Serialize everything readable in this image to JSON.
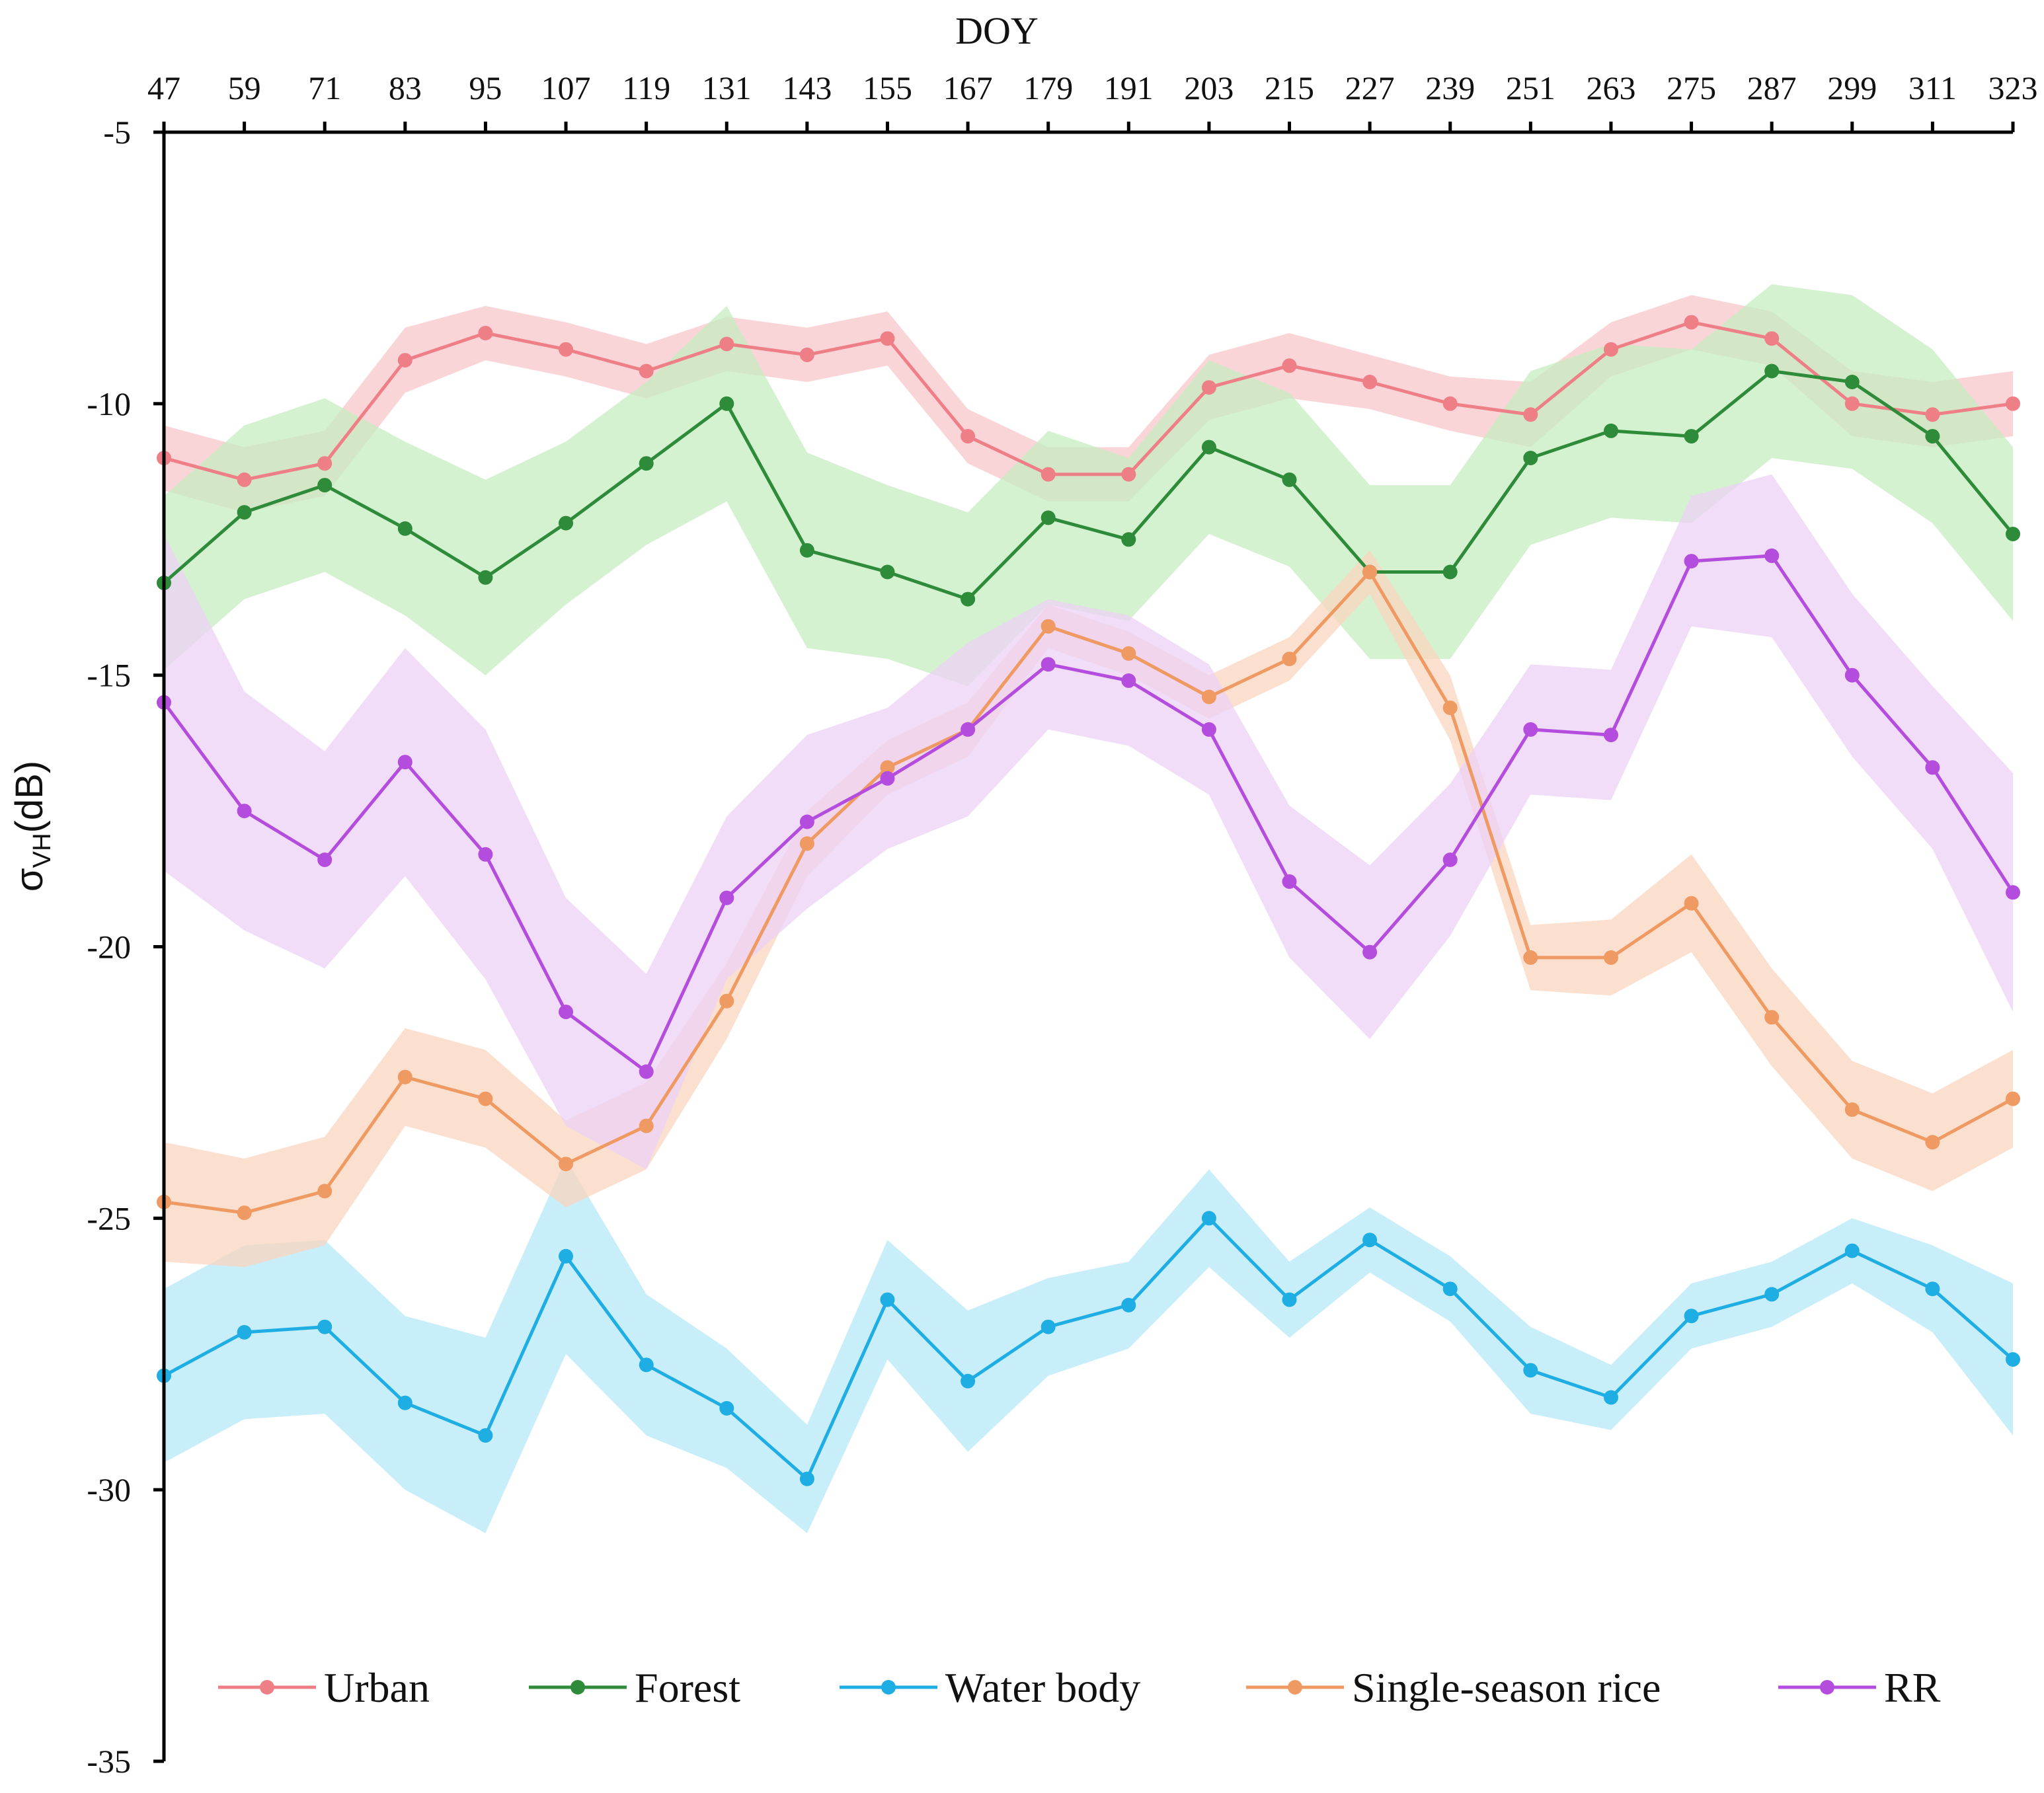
{
  "chart_data": {
    "type": "line",
    "title": "",
    "xlabel": "DOY",
    "ylabel": {
      "main": "σ",
      "subscript": "VH",
      "suffix": "(dB)"
    },
    "x_axis_position": "top",
    "x": [
      47,
      59,
      71,
      83,
      95,
      107,
      119,
      131,
      143,
      155,
      167,
      179,
      191,
      203,
      215,
      227,
      239,
      251,
      263,
      275,
      287,
      299,
      311,
      323
    ],
    "xlim": [
      47,
      323
    ],
    "ylim": [
      -35,
      -5
    ],
    "y_ticks": [
      -5,
      -10,
      -15,
      -20,
      -25,
      -30,
      -35
    ],
    "grid": false,
    "legend_position": "bottom",
    "series": [
      {
        "name": "Urban",
        "color": "#ef7f87",
        "band_color": "#f8c7cb",
        "values": [
          -11.0,
          -11.4,
          -11.1,
          -9.2,
          -8.7,
          -9.0,
          -9.4,
          -8.9,
          -9.1,
          -8.8,
          -10.6,
          -11.3,
          -11.3,
          -9.7,
          -9.3,
          -9.6,
          -10.0,
          -10.2,
          -9.0,
          -8.5,
          -8.8,
          -10.0,
          -10.2,
          -10.0
        ],
        "spread": [
          0.6,
          0.6,
          0.6,
          0.6,
          0.5,
          0.5,
          0.5,
          0.5,
          0.5,
          0.5,
          0.5,
          0.5,
          0.5,
          0.6,
          0.6,
          0.5,
          0.5,
          0.6,
          0.5,
          0.5,
          0.5,
          0.6,
          0.6,
          0.6
        ]
      },
      {
        "name": "Forest",
        "color": "#2e8b3a",
        "band_color": "#c6ecc0",
        "values": [
          -13.3,
          -12.0,
          -11.5,
          -12.3,
          -13.2,
          -12.2,
          -11.1,
          -10.0,
          -12.7,
          -13.1,
          -13.6,
          -12.1,
          -12.5,
          -10.8,
          -11.4,
          -13.1,
          -13.1,
          -11.0,
          -10.5,
          -10.6,
          -9.4,
          -9.6,
          -10.6,
          -12.4
        ],
        "spread": [
          1.6,
          1.6,
          1.6,
          1.6,
          1.8,
          1.5,
          1.5,
          1.8,
          1.8,
          1.6,
          1.6,
          1.6,
          1.5,
          1.6,
          1.6,
          1.6,
          1.6,
          1.6,
          1.6,
          1.6,
          1.6,
          1.6,
          1.6,
          1.6
        ]
      },
      {
        "name": "Water body",
        "color": "#1eaee3",
        "band_color": "#b5e8f8",
        "values": [
          -27.9,
          -27.1,
          -27.0,
          -28.4,
          -29.0,
          -25.7,
          -27.7,
          -28.5,
          -29.8,
          -26.5,
          -28.0,
          -27.0,
          -26.6,
          -25.0,
          -26.5,
          -25.4,
          -26.3,
          -27.8,
          -28.3,
          -26.8,
          -26.4,
          -25.6,
          -26.3,
          -27.6
        ],
        "spread": [
          1.6,
          1.6,
          1.6,
          1.6,
          1.8,
          1.8,
          1.3,
          1.1,
          1.0,
          1.1,
          1.3,
          0.9,
          0.8,
          0.9,
          0.7,
          0.6,
          0.6,
          0.8,
          0.6,
          0.6,
          0.6,
          0.6,
          0.8,
          1.4
        ]
      },
      {
        "name": "Single-season rice",
        "color": "#ee9a62",
        "band_color": "#f9d6bf",
        "values": [
          -24.7,
          -24.9,
          -24.5,
          -22.4,
          -22.8,
          -24.0,
          -23.3,
          -21.0,
          -18.1,
          -16.7,
          -16.0,
          -14.1,
          -14.6,
          -15.4,
          -14.7,
          -13.1,
          -15.6,
          -20.2,
          -20.2,
          -19.2,
          -21.3,
          -23.0,
          -23.6,
          -22.8
        ],
        "spread": [
          1.1,
          1.0,
          1.0,
          0.9,
          0.9,
          0.8,
          0.8,
          0.7,
          0.6,
          0.5,
          0.5,
          0.4,
          0.4,
          0.4,
          0.4,
          0.4,
          0.6,
          0.6,
          0.7,
          0.9,
          0.9,
          0.9,
          0.9,
          0.9
        ]
      },
      {
        "name": "RR",
        "color": "#b44ddd",
        "band_color": "#ecd2f6",
        "values": [
          -15.5,
          -17.5,
          -18.4,
          -16.6,
          -18.3,
          -21.2,
          -22.3,
          -19.1,
          -17.7,
          -16.9,
          -16.0,
          -14.8,
          -15.1,
          -16.0,
          -18.8,
          -20.1,
          -18.4,
          -16.0,
          -16.1,
          -12.9,
          -12.8,
          -15.0,
          -16.7,
          -19.0
        ],
        "spread": [
          3.1,
          2.2,
          2.0,
          2.1,
          2.3,
          2.1,
          1.8,
          1.5,
          1.6,
          1.3,
          1.6,
          1.2,
          1.2,
          1.2,
          1.4,
          1.6,
          1.4,
          1.2,
          1.2,
          1.2,
          1.5,
          1.5,
          1.5,
          2.2
        ]
      }
    ]
  }
}
